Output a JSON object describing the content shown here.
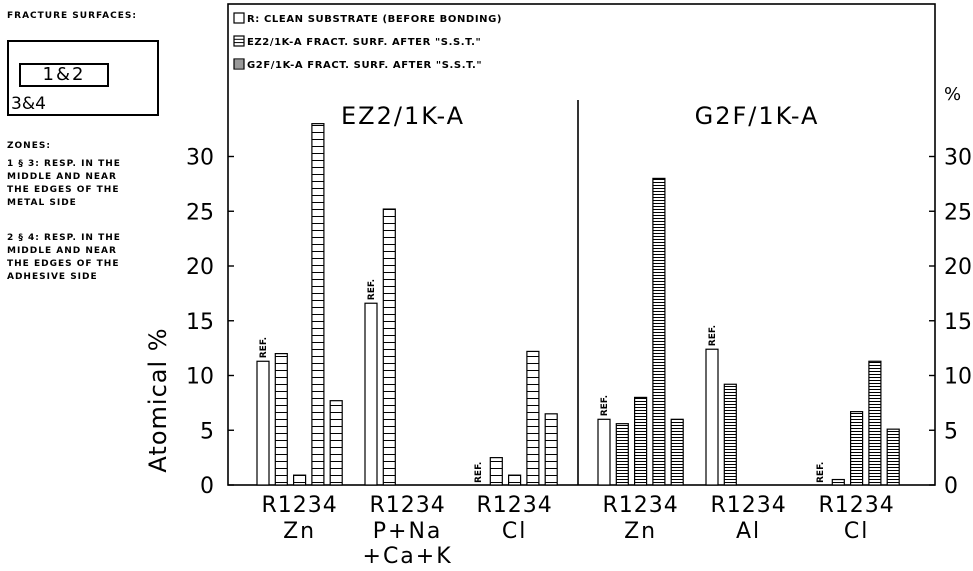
{
  "side_panel": {
    "heading": "FRACTURE SURFACES:",
    "zone_inner": "1&2",
    "zone_outer": "3&4",
    "zones_heading": "ZONES:",
    "zones_text_1": [
      "1 § 3: RESP. IN THE",
      "MIDDLE AND NEAR",
      "THE EDGES OF THE",
      "METAL SIDE"
    ],
    "zones_text_2": [
      "2 § 4: RESP. IN THE",
      "MIDDLE AND NEAR",
      "THE EDGES OF THE",
      "ADHESIVE SIDE"
    ]
  },
  "chart_data": {
    "type": "bar",
    "ylabel": "Atomical %",
    "ylabel_right": "%",
    "ylim": [
      0,
      33
    ],
    "yticks": [
      0,
      5,
      10,
      15,
      20,
      25,
      30
    ],
    "grid": false,
    "legend_position": "top-left",
    "legend": [
      {
        "label": "R: CLEAN SUBSTRATE (BEFORE BONDING)",
        "pattern": "open"
      },
      {
        "label": "EZ2/1K-A   FRACT. SURF.   AFTER \"S.S.T.\"",
        "pattern": "grid"
      },
      {
        "label": "G2F/1K-A   FRACT. SURF.   AFTER \"S.S.T.\"",
        "pattern": "hlines"
      }
    ],
    "ref_label": "REF.",
    "bar_labels": [
      "R",
      "1",
      "2",
      "3",
      "4"
    ],
    "panels": [
      {
        "title": "EZ2/1K-A",
        "pattern": "grid",
        "groups": [
          {
            "element": [
              "Zn"
            ],
            "values": [
              11.3,
              12.0,
              0.9,
              33.0,
              7.7
            ]
          },
          {
            "element": [
              "P+Na",
              "+Ca+K"
            ],
            "values": [
              16.6,
              25.2,
              0,
              0,
              0
            ]
          },
          {
            "element": [
              "Cl"
            ],
            "values": [
              0,
              2.5,
              0.9,
              12.2,
              6.5
            ]
          }
        ]
      },
      {
        "title": "G2F/1K-A",
        "pattern": "hlines",
        "groups": [
          {
            "element": [
              "Zn"
            ],
            "values": [
              6.0,
              5.6,
              8.0,
              28.0,
              6.0
            ]
          },
          {
            "element": [
              "Al"
            ],
            "values": [
              12.4,
              9.2,
              0,
              0,
              0
            ]
          },
          {
            "element": [
              "Cl"
            ],
            "values": [
              0,
              0.5,
              6.7,
              11.3,
              5.1
            ]
          }
        ]
      }
    ]
  }
}
